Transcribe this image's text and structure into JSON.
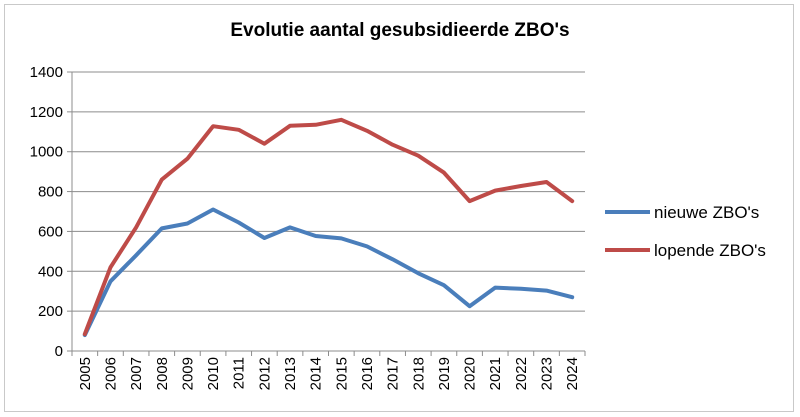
{
  "chart_data": {
    "type": "line",
    "title": "Evolutie aantal gesubsidieerde ZBO's",
    "categories": [
      "2005",
      "2006",
      "2007",
      "2008",
      "2009",
      "2010",
      "2011",
      "2012",
      "2013",
      "2014",
      "2015",
      "2016",
      "2017",
      "2018",
      "2019",
      "2020",
      "2021",
      "2022",
      "2023",
      "2024"
    ],
    "series": [
      {
        "name": "nieuwe ZBO's",
        "color": "#4a7ebb",
        "values": [
          80,
          350,
          480,
          615,
          640,
          710,
          645,
          567,
          620,
          577,
          565,
          525,
          460,
          390,
          330,
          225,
          318,
          312,
          303,
          270
        ]
      },
      {
        "name": "lopende ZBO's",
        "color": "#be4b48",
        "values": [
          85,
          420,
          620,
          860,
          965,
          1128,
          1110,
          1040,
          1130,
          1135,
          1160,
          1105,
          1035,
          980,
          895,
          752,
          805,
          828,
          848,
          752
        ]
      }
    ],
    "ylim": [
      0,
      1400
    ],
    "yticks": [
      0,
      200,
      400,
      600,
      800,
      1000,
      1200,
      1400
    ],
    "grid": true,
    "legend": "right"
  }
}
